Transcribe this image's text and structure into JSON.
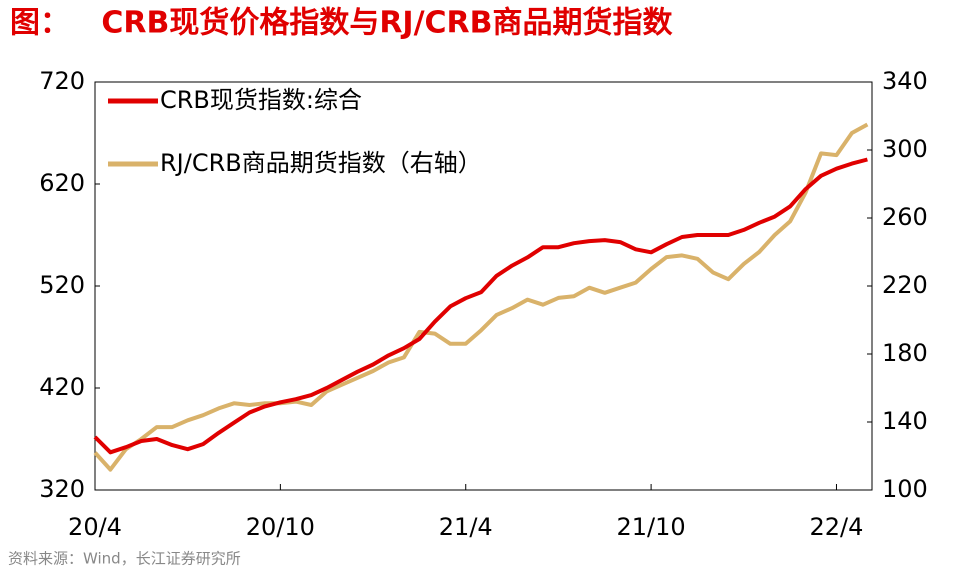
{
  "chart_data": {
    "type": "line",
    "title": "图：   CRB现货价格指数与RJ/CRB商品期货指数",
    "source": "资料来源：Wind，长江证券研究所",
    "categories": [
      "20/4",
      null,
      null,
      null,
      null,
      null,
      null,
      null,
      null,
      null,
      null,
      null,
      "20/10",
      null,
      null,
      null,
      null,
      null,
      null,
      null,
      null,
      null,
      null,
      null,
      "21/4",
      null,
      null,
      null,
      null,
      null,
      null,
      null,
      null,
      null,
      null,
      null,
      "21/10",
      null,
      null,
      null,
      null,
      null,
      null,
      null,
      null,
      null,
      null,
      null,
      "22/4",
      null,
      null
    ],
    "series": [
      {
        "name": "CRB现货指数:综合",
        "color": "#e00000",
        "axis": "y",
        "values": [
          372,
          357,
          362,
          368,
          370,
          364,
          360,
          365,
          376,
          386,
          396,
          402,
          406,
          409,
          413,
          420,
          428,
          436,
          443,
          452,
          459,
          468,
          485,
          500,
          508,
          514,
          530,
          540,
          548,
          558,
          558,
          562,
          564,
          565,
          563,
          556,
          553,
          561,
          568,
          570,
          570,
          570,
          575,
          582,
          588,
          598,
          615,
          628,
          635,
          640,
          644
        ]
      },
      {
        "name": "RJ/CRB商品期货指数（右轴）",
        "color": "#d9b26a",
        "axis": "y2",
        "values": [
          122,
          112,
          124,
          130,
          137,
          137,
          141,
          144,
          148,
          151,
          150,
          151,
          151,
          152,
          150,
          158,
          162,
          166,
          170,
          175,
          178,
          193,
          192,
          186,
          186,
          194,
          203,
          207,
          212,
          209,
          213,
          214,
          219,
          216,
          219,
          222,
          230,
          237,
          238,
          236,
          228,
          224,
          233,
          240,
          250,
          258,
          275,
          298,
          297,
          310,
          315
        ]
      }
    ],
    "ylim": [
      320,
      720
    ],
    "yticks": [
      320,
      420,
      520,
      620,
      720
    ],
    "y2lim": [
      100,
      340
    ],
    "y2ticks": [
      100,
      140,
      180,
      220,
      260,
      300,
      340
    ],
    "legend": "top-left"
  }
}
